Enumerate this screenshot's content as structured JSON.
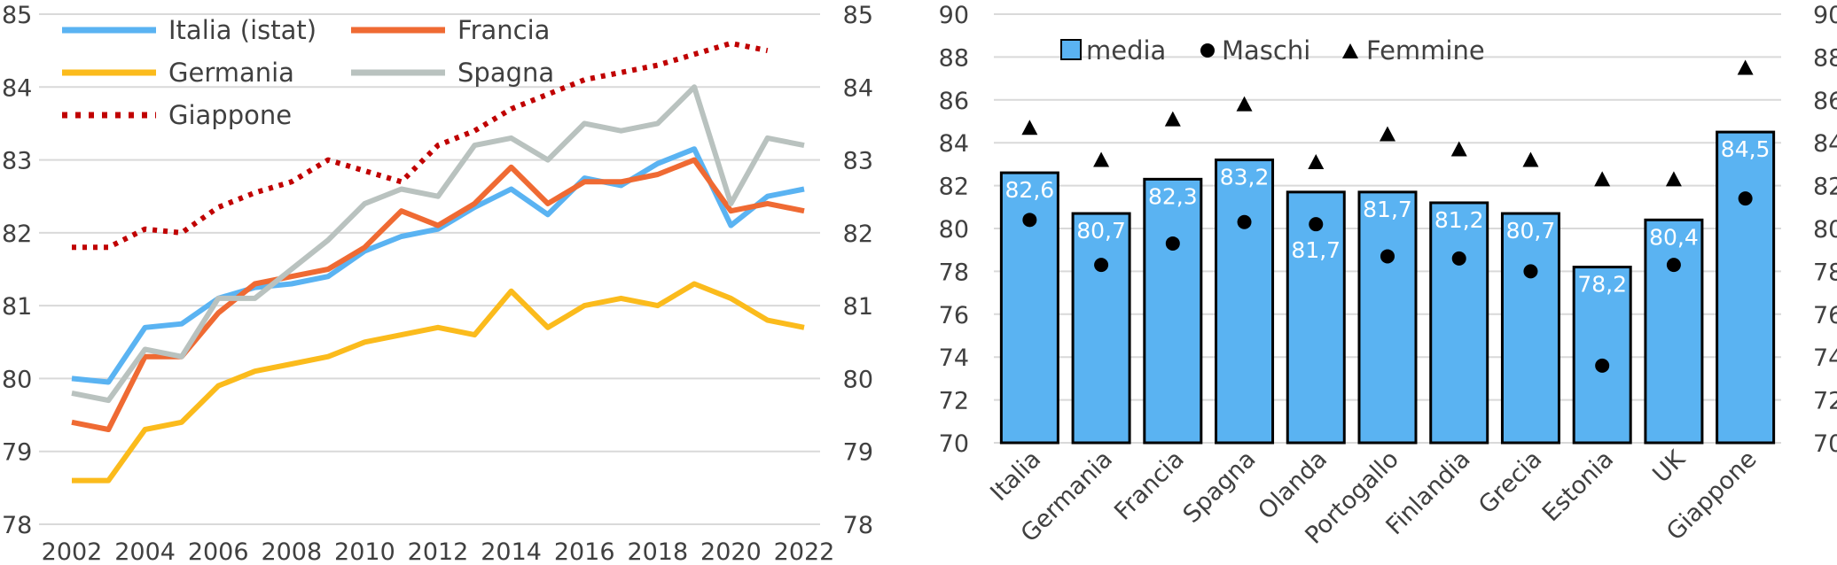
{
  "chart_data": [
    {
      "type": "line",
      "title": "",
      "xlabel": "",
      "ylabel": "",
      "ylim": [
        78,
        85
      ],
      "y_ticks": [
        "78",
        "79",
        "80",
        "81",
        "82",
        "83",
        "84",
        "85"
      ],
      "x_ticks": [
        "2002",
        "2004",
        "2006",
        "2008",
        "2010",
        "2012",
        "2014",
        "2016",
        "2018",
        "2020",
        "2022"
      ],
      "grid": true,
      "legend_position": "top-left",
      "x": [
        2002,
        2003,
        2004,
        2005,
        2006,
        2007,
        2008,
        2009,
        2010,
        2011,
        2012,
        2013,
        2014,
        2015,
        2016,
        2017,
        2018,
        2019,
        2020,
        2021,
        2022
      ],
      "series": [
        {
          "name": "Italia (istat)",
          "color": "#5ab3f2",
          "style": "solid",
          "values": [
            80.0,
            79.95,
            80.7,
            80.75,
            81.1,
            81.25,
            81.3,
            81.4,
            81.75,
            81.95,
            82.05,
            82.35,
            82.6,
            82.25,
            82.75,
            82.65,
            82.95,
            83.15,
            82.1,
            82.5,
            82.6
          ]
        },
        {
          "name": "Francia",
          "color": "#ef6a33",
          "style": "solid",
          "values": [
            79.4,
            79.3,
            80.3,
            80.3,
            80.9,
            81.3,
            81.4,
            81.5,
            81.8,
            82.3,
            82.1,
            82.4,
            82.9,
            82.4,
            82.7,
            82.7,
            82.8,
            83.0,
            82.3,
            82.4,
            82.3
          ]
        },
        {
          "name": "Germania",
          "color": "#fbbb1c",
          "style": "solid",
          "values": [
            78.6,
            78.6,
            79.3,
            79.4,
            79.9,
            80.1,
            80.2,
            80.3,
            80.5,
            80.6,
            80.7,
            80.6,
            81.2,
            80.7,
            81.0,
            81.1,
            81.0,
            81.3,
            81.1,
            80.8,
            80.7
          ]
        },
        {
          "name": "Spagna",
          "color": "#b9c2bf",
          "style": "solid",
          "values": [
            79.8,
            79.7,
            80.4,
            80.3,
            81.1,
            81.1,
            81.5,
            81.9,
            82.4,
            82.6,
            82.5,
            83.2,
            83.3,
            83.0,
            83.5,
            83.4,
            83.5,
            84.0,
            82.4,
            83.3,
            83.2
          ]
        },
        {
          "name": "Giappone",
          "color": "#c00000",
          "style": "dotted",
          "values": [
            81.8,
            81.8,
            82.05,
            82.0,
            82.35,
            82.55,
            82.7,
            83.0,
            82.85,
            82.7,
            83.2,
            83.4,
            83.7,
            83.9,
            84.1,
            84.2,
            84.3,
            84.45,
            84.6,
            84.5,
            null
          ]
        }
      ]
    },
    {
      "type": "bar",
      "title": "",
      "xlabel": "",
      "ylabel": "",
      "ylim": [
        70,
        90
      ],
      "y_ticks": [
        "70",
        "72",
        "74",
        "76",
        "78",
        "80",
        "82",
        "84",
        "86",
        "88",
        "90"
      ],
      "grid": true,
      "legend_position": "top",
      "categories": [
        "Italia",
        "Germania",
        "Francia",
        "Spagna",
        "Olanda",
        "Portogallo",
        "Finlandia",
        "Grecia",
        "Estonia",
        "UK",
        "Giappone"
      ],
      "series": [
        {
          "name": "media",
          "color": "#5ab3f2",
          "marker": "bar",
          "values": [
            82.6,
            80.7,
            82.3,
            83.2,
            81.7,
            81.7,
            81.2,
            80.7,
            78.2,
            80.4,
            84.5
          ],
          "labels": [
            "82,6",
            "80,7",
            "82,3",
            "83,2",
            "81,7",
            "81,7",
            "81,2",
            "80,7",
            "78,2",
            "80,4",
            "84,5"
          ]
        },
        {
          "name": "Maschi",
          "color": "#000000",
          "marker": "circle",
          "values": [
            80.4,
            78.3,
            79.3,
            80.3,
            80.2,
            78.7,
            78.6,
            78.0,
            73.6,
            78.3,
            81.4
          ]
        },
        {
          "name": "Femmine",
          "color": "#000000",
          "marker": "triangle",
          "values": [
            84.7,
            83.2,
            85.1,
            85.8,
            83.1,
            84.4,
            83.7,
            83.2,
            82.3,
            82.3,
            87.5
          ]
        }
      ]
    }
  ]
}
